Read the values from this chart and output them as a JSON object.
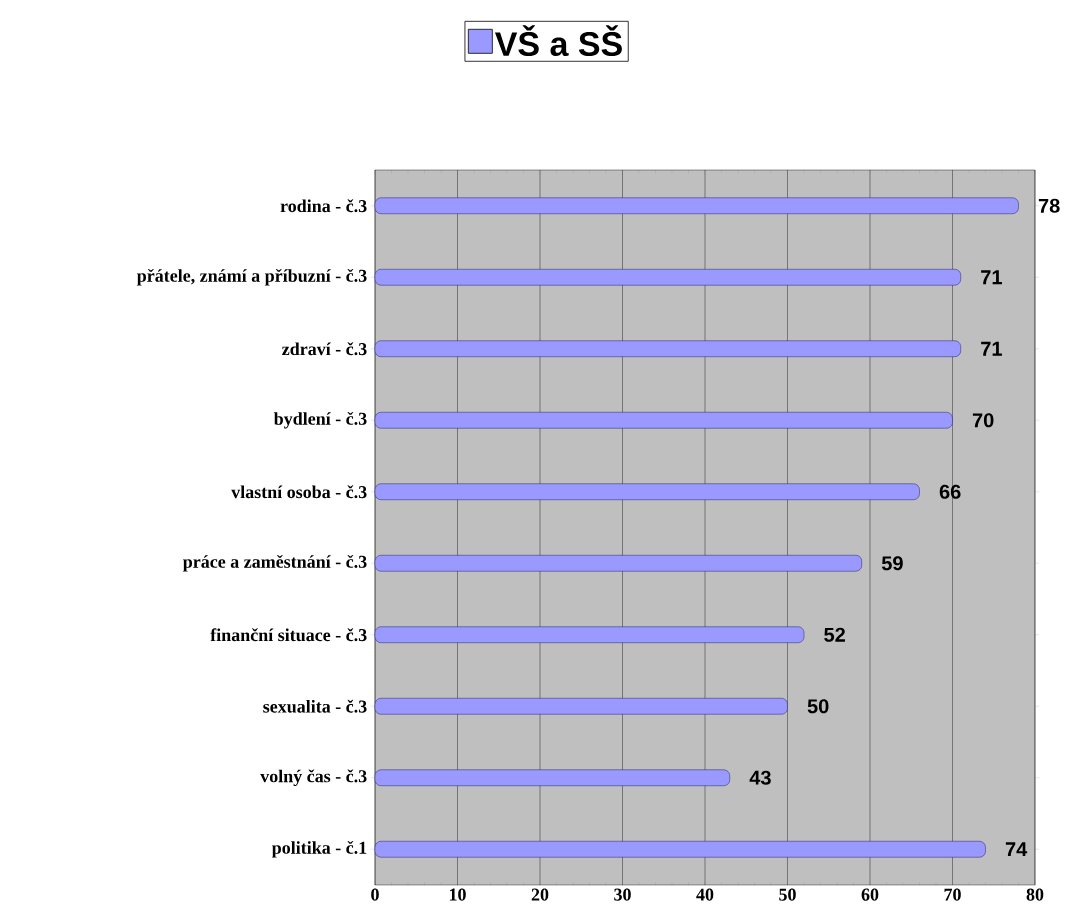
{
  "chart_data": {
    "type": "bar",
    "orientation": "horizontal",
    "categories": [
      "rodina - č.3",
      "přátele, známí a příbuzní - č.3",
      "zdraví - č.3",
      "bydlení - č.3",
      "vlastní osoba - č.3",
      "práce a zaměstnání - č.3",
      "finanční situace - č.3",
      "sexualita - č.3",
      "volný čas - č.3",
      "politika - č.1"
    ],
    "series": [
      {
        "name": "VŠ a SŠ",
        "color": "#9999ff",
        "values": [
          78,
          71,
          71,
          70,
          66,
          59,
          52,
          50,
          43,
          74
        ]
      }
    ],
    "xlim": [
      0,
      80
    ],
    "xticks": [
      0,
      10,
      20,
      30,
      40,
      50,
      60,
      70,
      80
    ],
    "grid": "x",
    "legend": "top",
    "data_labels": true
  }
}
